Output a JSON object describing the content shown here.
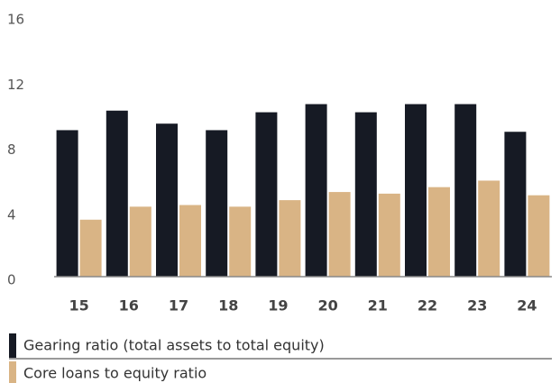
{
  "chart_data": {
    "type": "bar",
    "categories": [
      "15",
      "16",
      "17",
      "18",
      "19",
      "20",
      "21",
      "22",
      "23",
      "24"
    ],
    "series": [
      {
        "name": "Gearing ratio (total assets to total equity)",
        "color": "#161a24",
        "values": [
          9.0,
          10.2,
          9.4,
          9.0,
          10.1,
          10.6,
          10.1,
          10.6,
          10.6,
          8.9
        ]
      },
      {
        "name": "Core loans to equity ratio",
        "color": "#d9b485",
        "values": [
          3.5,
          4.3,
          4.4,
          4.3,
          4.7,
          5.2,
          5.1,
          5.5,
          5.9,
          5.0
        ]
      }
    ],
    "ylim": [
      0,
      16
    ],
    "yticks": [
      0,
      4,
      8,
      12,
      16
    ],
    "grid": false
  }
}
